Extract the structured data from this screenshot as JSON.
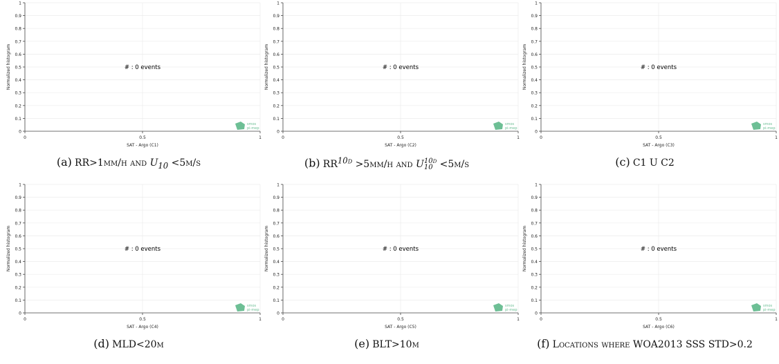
{
  "figure": {
    "panels": [
      {
        "id": "a",
        "letter": "(a)",
        "xlabel": "SAT - Argo (C1)"
      },
      {
        "id": "b",
        "letter": "(b)",
        "xlabel": "SAT - Argo (C2)"
      },
      {
        "id": "c",
        "letter": "(c)",
        "xlabel": "SAT - Argo (C3)"
      },
      {
        "id": "d",
        "letter": "(d)",
        "xlabel": "SAT - Argo (C4)"
      },
      {
        "id": "e",
        "letter": "(e)",
        "xlabel": "SAT - Argo (C5)"
      },
      {
        "id": "f",
        "letter": "(f)",
        "xlabel": "SAT - Argo (C6)"
      }
    ],
    "captions": {
      "a": {
        "p1": "RR>1mm/h and ",
        "var": "U",
        "sub": "10",
        "p2": " <5m/s"
      },
      "b": {
        "p1": "RR",
        "sup1": "10d",
        "p2": " >5mm/h and ",
        "var": "U",
        "sup": "10d",
        "sub": "10",
        "p3": " <5m/s"
      },
      "c": {
        "text": "C1 U C2"
      },
      "d": {
        "text": "MLD<20m"
      },
      "e": {
        "text": "BLT>10m"
      },
      "f": {
        "text": "Locations where WOA2013 SSS STD>0.2"
      }
    },
    "logo": {
      "line1": "smos",
      "line2": "pi-mep",
      "color": "#6dbf95"
    }
  },
  "chart_data": [
    {
      "type": "bar",
      "title": "",
      "xlabel": "SAT - Argo (C1)",
      "ylabel": "Normalized histogram",
      "xlim": [
        0,
        1
      ],
      "ylim": [
        0,
        1
      ],
      "xticks": [
        "0",
        "0.5",
        "1"
      ],
      "yticks": [
        "0",
        "0.1",
        "0.2",
        "0.3",
        "0.4",
        "0.5",
        "0.6",
        "0.7",
        "0.8",
        "0.9",
        "1"
      ],
      "grid": true,
      "annotation": "#  : 0 events",
      "series": []
    },
    {
      "type": "bar",
      "title": "",
      "xlabel": "SAT - Argo (C2)",
      "ylabel": "Normalized histogram",
      "xlim": [
        0,
        1
      ],
      "ylim": [
        0,
        1
      ],
      "xticks": [
        "0",
        "0.5",
        "1"
      ],
      "yticks": [
        "0",
        "0.1",
        "0.2",
        "0.3",
        "0.4",
        "0.5",
        "0.6",
        "0.7",
        "0.8",
        "0.9",
        "1"
      ],
      "grid": true,
      "annotation": "#  : 0 events",
      "series": []
    },
    {
      "type": "bar",
      "title": "",
      "xlabel": "SAT - Argo (C3)",
      "ylabel": "Normalized histogram",
      "xlim": [
        0,
        1
      ],
      "ylim": [
        0,
        1
      ],
      "xticks": [
        "0",
        "0.5",
        "1"
      ],
      "yticks": [
        "0",
        "0.1",
        "0.2",
        "0.3",
        "0.4",
        "0.5",
        "0.6",
        "0.7",
        "0.8",
        "0.9",
        "1"
      ],
      "grid": true,
      "annotation": "#  : 0 events",
      "series": []
    },
    {
      "type": "bar",
      "title": "",
      "xlabel": "SAT - Argo (C4)",
      "ylabel": "Normalized histogram",
      "xlim": [
        0,
        1
      ],
      "ylim": [
        0,
        1
      ],
      "xticks": [
        "0",
        "0.5",
        "1"
      ],
      "yticks": [
        "0",
        "0.1",
        "0.2",
        "0.3",
        "0.4",
        "0.5",
        "0.6",
        "0.7",
        "0.8",
        "0.9",
        "1"
      ],
      "grid": true,
      "annotation": "#  : 0 events",
      "series": []
    },
    {
      "type": "bar",
      "title": "",
      "xlabel": "SAT - Argo (C5)",
      "ylabel": "Normalized histogram",
      "xlim": [
        0,
        1
      ],
      "ylim": [
        0,
        1
      ],
      "xticks": [
        "0",
        "0.5",
        "1"
      ],
      "yticks": [
        "0",
        "0.1",
        "0.2",
        "0.3",
        "0.4",
        "0.5",
        "0.6",
        "0.7",
        "0.8",
        "0.9",
        "1"
      ],
      "grid": true,
      "annotation": "#  : 0 events",
      "series": []
    },
    {
      "type": "bar",
      "title": "",
      "xlabel": "SAT - Argo (C6)",
      "ylabel": "Normalized histogram",
      "xlim": [
        0,
        1
      ],
      "ylim": [
        0,
        1
      ],
      "xticks": [
        "0",
        "0.5",
        "1"
      ],
      "yticks": [
        "0",
        "0.1",
        "0.2",
        "0.3",
        "0.4",
        "0.5",
        "0.6",
        "0.7",
        "0.8",
        "0.9",
        "1"
      ],
      "grid": true,
      "annotation": "#  : 0 events",
      "series": []
    }
  ]
}
